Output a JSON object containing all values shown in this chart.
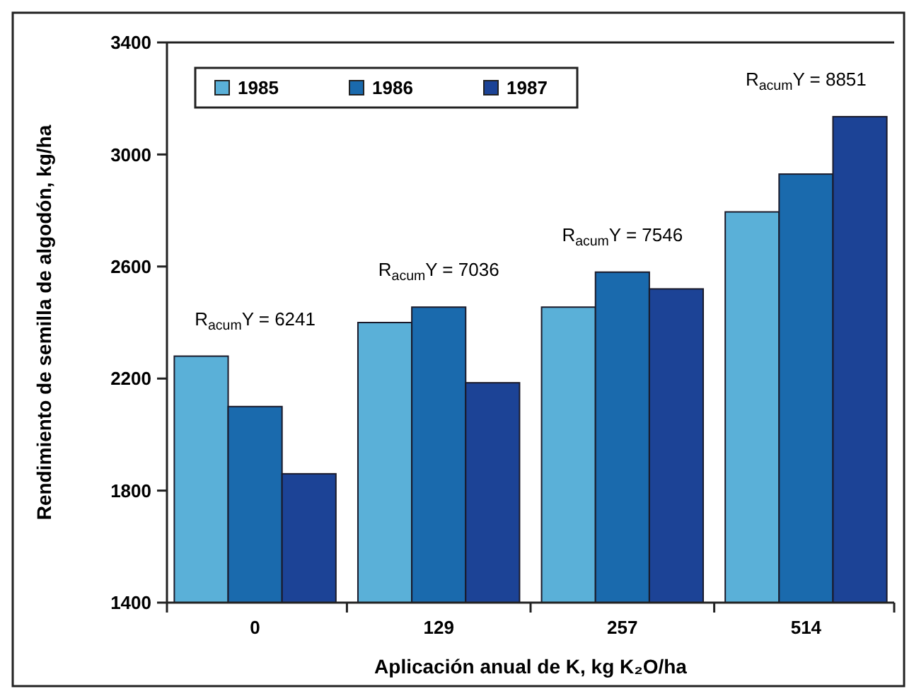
{
  "chart_data": {
    "type": "bar",
    "xlabel": "Aplicación anual de K, kg K₂O/ha",
    "ylabel": "Rendimiento de semilla de algodón, kg/ha",
    "categories": [
      "0",
      "129",
      "257",
      "514"
    ],
    "series": [
      {
        "name": "1985",
        "color": "#5ab0d8",
        "values": [
          2280,
          2400,
          2455,
          2795
        ]
      },
      {
        "name": "1986",
        "color": "#1a6aad",
        "values": [
          2100,
          2455,
          2580,
          2930
        ]
      },
      {
        "name": "1987",
        "color": "#1c4396",
        "values": [
          1860,
          2185,
          2520,
          3135
        ]
      }
    ],
    "ylim": [
      1400,
      3400
    ],
    "yticks": [
      1400,
      1800,
      2200,
      2600,
      3000,
      3400
    ],
    "grid": false,
    "legend": "top left",
    "annotations": [
      "R$_{acum}$Y = 6241",
      "R$_{acum}$Y = 7036",
      "R$_{acum}$Y = 7546",
      "R$_{acum}$Y = 8851"
    ]
  }
}
